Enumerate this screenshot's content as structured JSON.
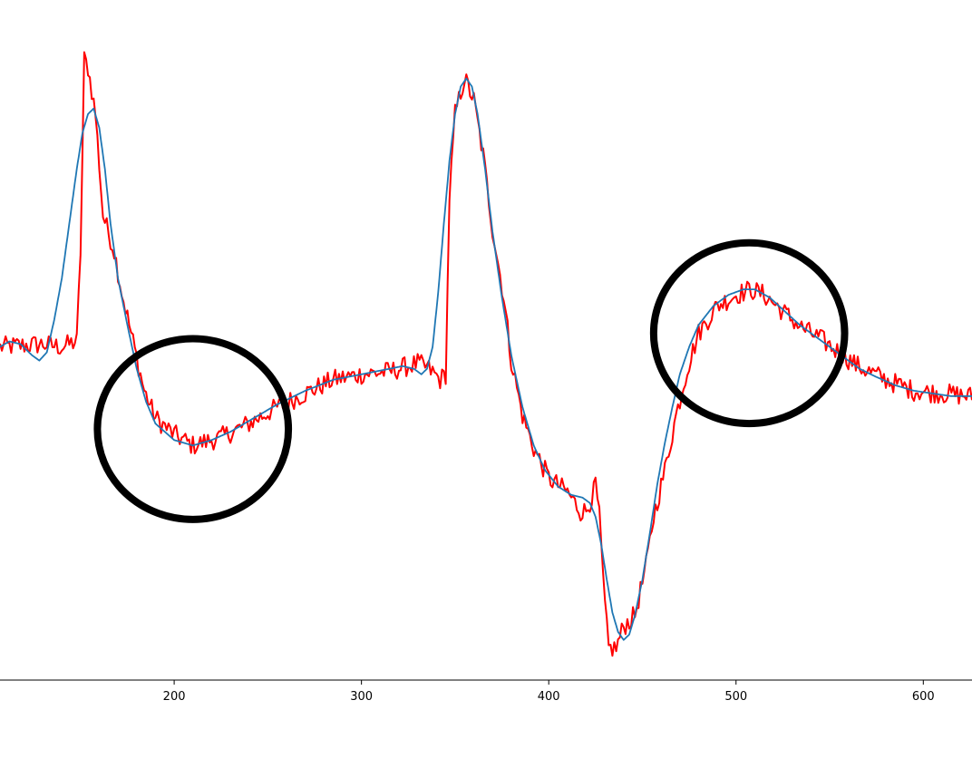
{
  "chart_data": {
    "type": "line",
    "x_ticks": [
      200,
      300,
      400,
      500,
      600
    ],
    "xlim": [
      107,
      626
    ],
    "ylim": [
      -1.15,
      1.2
    ],
    "grid": false,
    "legend": "none",
    "series": [
      {
        "color": "#ff0000",
        "noisy": true,
        "points": [
          [
            107,
            0.0
          ],
          [
            130,
            0.01
          ],
          [
            140,
            0.0
          ],
          [
            148,
            0.02
          ],
          [
            150,
            0.35
          ],
          [
            152,
            1.05
          ],
          [
            154,
            1.02
          ],
          [
            158,
            0.85
          ],
          [
            162,
            0.48
          ],
          [
            168,
            0.35
          ],
          [
            172,
            0.2
          ],
          [
            178,
            0.02
          ],
          [
            184,
            -0.16
          ],
          [
            190,
            -0.26
          ],
          [
            200,
            -0.32
          ],
          [
            210,
            -0.36
          ],
          [
            225,
            -0.33
          ],
          [
            240,
            -0.28
          ],
          [
            255,
            -0.22
          ],
          [
            270,
            -0.17
          ],
          [
            285,
            -0.12
          ],
          [
            300,
            -0.1
          ],
          [
            315,
            -0.09
          ],
          [
            330,
            -0.06
          ],
          [
            336,
            -0.08
          ],
          [
            342,
            -0.12
          ],
          [
            345,
            -0.1
          ],
          [
            347,
            0.55
          ],
          [
            350,
            0.85
          ],
          [
            355,
            0.98
          ],
          [
            360,
            0.9
          ],
          [
            365,
            0.7
          ],
          [
            370,
            0.43
          ],
          [
            376,
            0.18
          ],
          [
            380,
            -0.05
          ],
          [
            386,
            -0.25
          ],
          [
            392,
            -0.37
          ],
          [
            400,
            -0.48
          ],
          [
            410,
            -0.53
          ],
          [
            417,
            -0.6
          ],
          [
            420,
            -0.6
          ],
          [
            424,
            -0.53
          ],
          [
            425,
            -0.5
          ],
          [
            427,
            -0.62
          ],
          [
            430,
            -0.95
          ],
          [
            432,
            -1.1
          ],
          [
            436,
            -1.1
          ],
          [
            440,
            -1.02
          ],
          [
            446,
            -0.98
          ],
          [
            452,
            -0.8
          ],
          [
            456,
            -0.62
          ],
          [
            462,
            -0.45
          ],
          [
            468,
            -0.25
          ],
          [
            474,
            -0.08
          ],
          [
            480,
            0.05
          ],
          [
            490,
            0.15
          ],
          [
            500,
            0.19
          ],
          [
            508,
            0.21
          ],
          [
            515,
            0.19
          ],
          [
            525,
            0.13
          ],
          [
            535,
            0.07
          ],
          [
            545,
            0.03
          ],
          [
            555,
            -0.02
          ],
          [
            565,
            -0.07
          ],
          [
            580,
            -0.12
          ],
          [
            595,
            -0.16
          ],
          [
            610,
            -0.17
          ],
          [
            626,
            -0.18
          ]
        ]
      },
      {
        "color": "#1f77b4",
        "noisy": false,
        "points": [
          [
            107,
            0.0
          ],
          [
            112,
            0.02
          ],
          [
            118,
            0.01
          ],
          [
            124,
            -0.03
          ],
          [
            128,
            -0.05
          ],
          [
            132,
            -0.02
          ],
          [
            136,
            0.1
          ],
          [
            140,
            0.25
          ],
          [
            144,
            0.45
          ],
          [
            148,
            0.65
          ],
          [
            151,
            0.78
          ],
          [
            154,
            0.85
          ],
          [
            157,
            0.87
          ],
          [
            160,
            0.8
          ],
          [
            163,
            0.65
          ],
          [
            166,
            0.45
          ],
          [
            170,
            0.25
          ],
          [
            175,
            0.08
          ],
          [
            180,
            -0.08
          ],
          [
            185,
            -0.2
          ],
          [
            190,
            -0.28
          ],
          [
            200,
            -0.34
          ],
          [
            210,
            -0.36
          ],
          [
            220,
            -0.34
          ],
          [
            230,
            -0.31
          ],
          [
            240,
            -0.27
          ],
          [
            255,
            -0.21
          ],
          [
            270,
            -0.16
          ],
          [
            285,
            -0.12
          ],
          [
            300,
            -0.1
          ],
          [
            315,
            -0.08
          ],
          [
            322,
            -0.07
          ],
          [
            328,
            -0.08
          ],
          [
            332,
            -0.1
          ],
          [
            335,
            -0.08
          ],
          [
            338,
            0.0
          ],
          [
            341,
            0.2
          ],
          [
            344,
            0.45
          ],
          [
            347,
            0.68
          ],
          [
            350,
            0.85
          ],
          [
            353,
            0.95
          ],
          [
            356,
            0.98
          ],
          [
            359,
            0.95
          ],
          [
            362,
            0.85
          ],
          [
            366,
            0.65
          ],
          [
            370,
            0.42
          ],
          [
            375,
            0.18
          ],
          [
            380,
            -0.03
          ],
          [
            386,
            -0.22
          ],
          [
            392,
            -0.36
          ],
          [
            398,
            -0.45
          ],
          [
            405,
            -0.51
          ],
          [
            412,
            -0.54
          ],
          [
            418,
            -0.55
          ],
          [
            422,
            -0.57
          ],
          [
            425,
            -0.62
          ],
          [
            428,
            -0.72
          ],
          [
            431,
            -0.85
          ],
          [
            434,
            -0.97
          ],
          [
            437,
            -1.04
          ],
          [
            440,
            -1.07
          ],
          [
            443,
            -1.05
          ],
          [
            446,
            -0.98
          ],
          [
            450,
            -0.85
          ],
          [
            454,
            -0.68
          ],
          [
            458,
            -0.5
          ],
          [
            462,
            -0.35
          ],
          [
            466,
            -0.22
          ],
          [
            470,
            -0.1
          ],
          [
            475,
            0.0
          ],
          [
            480,
            0.08
          ],
          [
            488,
            0.15
          ],
          [
            496,
            0.19
          ],
          [
            504,
            0.21
          ],
          [
            510,
            0.21
          ],
          [
            518,
            0.18
          ],
          [
            526,
            0.13
          ],
          [
            534,
            0.08
          ],
          [
            542,
            0.04
          ],
          [
            550,
            0.0
          ],
          [
            558,
            -0.04
          ],
          [
            566,
            -0.08
          ],
          [
            575,
            -0.11
          ],
          [
            585,
            -0.14
          ],
          [
            595,
            -0.16
          ],
          [
            605,
            -0.17
          ],
          [
            615,
            -0.18
          ],
          [
            626,
            -0.18
          ]
        ]
      }
    ],
    "annotations": [
      {
        "shape": "circle",
        "cx": 210,
        "cy": -0.3,
        "rx": 51,
        "ry": 0.33,
        "color": "#000000"
      },
      {
        "shape": "circle",
        "cx": 507,
        "cy": 0.05,
        "rx": 51,
        "ry": 0.33,
        "color": "#000000"
      }
    ]
  }
}
